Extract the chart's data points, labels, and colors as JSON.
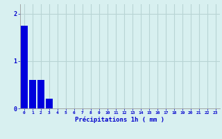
{
  "bar_values": [
    1.75,
    0.6,
    0.6,
    0.2,
    0,
    0,
    0,
    0,
    0,
    0,
    0,
    0,
    0,
    0,
    0,
    0,
    0,
    0,
    0,
    0,
    0,
    0,
    0,
    0
  ],
  "bar_color": "#0000dd",
  "background_color": "#d8f0f0",
  "grid_color": "#b8d4d4",
  "xlabel": "Précipitations 1h ( mm )",
  "xlabel_color": "#0000cc",
  "tick_color": "#0000cc",
  "ylim": [
    0,
    2.2
  ],
  "yticks": [
    0,
    1,
    2
  ],
  "xlim": [
    -0.5,
    23.5
  ],
  "bar_width": 0.85,
  "x_labels": [
    "0",
    "1",
    "2",
    "3",
    "4",
    "5",
    "6",
    "7",
    "8",
    "9",
    "10",
    "11",
    "12",
    "13",
    "14",
    "15",
    "16",
    "17",
    "18",
    "19",
    "20",
    "21",
    "22",
    "23"
  ]
}
